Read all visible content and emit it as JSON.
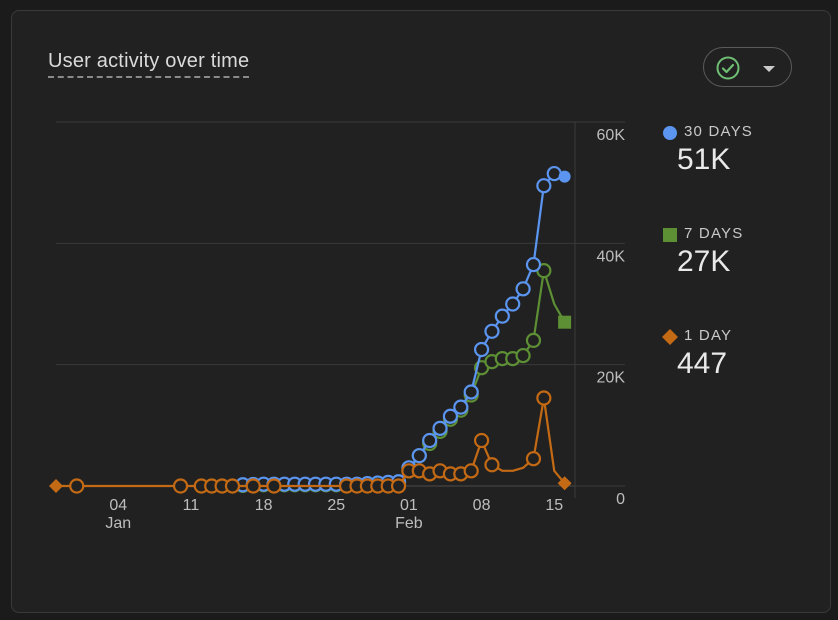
{
  "header": {
    "title": "User activity over time"
  },
  "controls": {
    "status_icon": "check-circle-icon",
    "dropdown_icon": "caret-down-icon"
  },
  "colors": {
    "days30": "#5b95f0",
    "days7": "#5d8f35",
    "day1": "#c46a14"
  },
  "legend": [
    {
      "key": "days30",
      "label": "30 DAYS",
      "value": "51K",
      "marker": "circle"
    },
    {
      "key": "days7",
      "label": "7 DAYS",
      "value": "27K",
      "marker": "square"
    },
    {
      "key": "day1",
      "label": "1 DAY",
      "value": "447",
      "marker": "diamond"
    }
  ],
  "chart_data": {
    "type": "line",
    "xlim": [
      "2023-12-29",
      "2024-02-17"
    ],
    "ylim": [
      0,
      60000
    ],
    "yticks": [
      0,
      20000,
      40000,
      60000
    ],
    "ytick_labels": [
      "0",
      "20K",
      "40K",
      "60K"
    ],
    "xticks": [
      {
        "x": "2024-01-04",
        "label": "04",
        "sublabel": "Jan"
      },
      {
        "x": "2024-01-11",
        "label": "11",
        "sublabel": ""
      },
      {
        "x": "2024-01-18",
        "label": "18",
        "sublabel": ""
      },
      {
        "x": "2024-01-25",
        "label": "25",
        "sublabel": ""
      },
      {
        "x": "2024-02-01",
        "label": "01",
        "sublabel": "Feb"
      },
      {
        "x": "2024-02-08",
        "label": "08",
        "sublabel": ""
      },
      {
        "x": "2024-02-15",
        "label": "15",
        "sublabel": ""
      }
    ],
    "grid": true,
    "legend_position": "right",
    "series": [
      {
        "name": "30 DAYS",
        "key": "days30",
        "marker": "circle",
        "points": [
          [
            "2024-01-16",
            200
          ],
          [
            "2024-01-17",
            250
          ],
          [
            "2024-01-18",
            300
          ],
          [
            "2024-01-19",
            300
          ],
          [
            "2024-01-20",
            300
          ],
          [
            "2024-01-21",
            300
          ],
          [
            "2024-01-22",
            300
          ],
          [
            "2024-01-23",
            300
          ],
          [
            "2024-01-24",
            300
          ],
          [
            "2024-01-25",
            300
          ],
          [
            "2024-01-26",
            300
          ],
          [
            "2024-01-27",
            300
          ],
          [
            "2024-01-28",
            400
          ],
          [
            "2024-01-29",
            500
          ],
          [
            "2024-01-30",
            600
          ],
          [
            "2024-01-31",
            700
          ],
          [
            "2024-02-01",
            3000
          ],
          [
            "2024-02-02",
            5000
          ],
          [
            "2024-02-03",
            7500
          ],
          [
            "2024-02-04",
            9500
          ],
          [
            "2024-02-05",
            11500
          ],
          [
            "2024-02-06",
            13000
          ],
          [
            "2024-02-07",
            15500
          ],
          [
            "2024-02-08",
            22500
          ],
          [
            "2024-02-09",
            25500
          ],
          [
            "2024-02-10",
            28000
          ],
          [
            "2024-02-11",
            30000
          ],
          [
            "2024-02-12",
            32500
          ],
          [
            "2024-02-13",
            36500
          ],
          [
            "2024-02-14",
            49500
          ],
          [
            "2024-02-15",
            51500
          ],
          [
            "2024-02-16",
            51000,
            "end"
          ]
        ]
      },
      {
        "name": "7 DAYS",
        "key": "days7",
        "marker": "square",
        "points": [
          [
            "2024-01-16",
            100
          ],
          [
            "2024-01-17",
            150
          ],
          [
            "2024-01-18",
            200
          ],
          [
            "2024-01-19",
            200
          ],
          [
            "2024-01-20",
            200
          ],
          [
            "2024-01-21",
            200
          ],
          [
            "2024-01-22",
            200
          ],
          [
            "2024-01-23",
            200
          ],
          [
            "2024-01-24",
            200
          ],
          [
            "2024-01-25",
            200
          ],
          [
            "2024-01-26",
            200
          ],
          [
            "2024-01-27",
            200
          ],
          [
            "2024-01-28",
            300
          ],
          [
            "2024-01-29",
            400
          ],
          [
            "2024-01-30",
            500
          ],
          [
            "2024-01-31",
            600
          ],
          [
            "2024-02-01",
            2500
          ],
          [
            "2024-02-02",
            5000
          ],
          [
            "2024-02-03",
            7000
          ],
          [
            "2024-02-04",
            9000
          ],
          [
            "2024-02-05",
            11000
          ],
          [
            "2024-02-06",
            12500
          ],
          [
            "2024-02-07",
            15000
          ],
          [
            "2024-02-08",
            19500
          ],
          [
            "2024-02-09",
            20500
          ],
          [
            "2024-02-10",
            21000
          ],
          [
            "2024-02-11",
            21000
          ],
          [
            "2024-02-12",
            21500
          ],
          [
            "2024-02-13",
            24000
          ],
          [
            "2024-02-14",
            35500
          ],
          [
            "2024-02-15",
            30000,
            "none"
          ],
          [
            "2024-02-16",
            27000,
            "end"
          ]
        ]
      },
      {
        "name": "1 DAY",
        "key": "day1",
        "marker": "diamond",
        "points": [
          [
            "2023-12-29",
            0,
            "start"
          ],
          [
            "2023-12-31",
            0
          ],
          [
            "2024-01-10",
            0
          ],
          [
            "2024-01-12",
            0
          ],
          [
            "2024-01-13",
            0
          ],
          [
            "2024-01-14",
            0
          ],
          [
            "2024-01-15",
            0
          ],
          [
            "2024-01-17",
            0
          ],
          [
            "2024-01-19",
            0
          ],
          [
            "2024-01-26",
            0
          ],
          [
            "2024-01-27",
            0
          ],
          [
            "2024-01-28",
            0
          ],
          [
            "2024-01-29",
            0
          ],
          [
            "2024-01-30",
            0
          ],
          [
            "2024-01-31",
            0
          ],
          [
            "2024-02-01",
            2500
          ],
          [
            "2024-02-02",
            2500
          ],
          [
            "2024-02-03",
            2000
          ],
          [
            "2024-02-04",
            2500
          ],
          [
            "2024-02-05",
            2000
          ],
          [
            "2024-02-06",
            2000
          ],
          [
            "2024-02-07",
            2500
          ],
          [
            "2024-02-08",
            7500
          ],
          [
            "2024-02-09",
            3500
          ],
          [
            "2024-02-10",
            2500,
            "none"
          ],
          [
            "2024-02-11",
            2500,
            "none"
          ],
          [
            "2024-02-12",
            3000,
            "none"
          ],
          [
            "2024-02-13",
            4500
          ],
          [
            "2024-02-14",
            14500
          ],
          [
            "2024-02-15",
            2500,
            "none"
          ],
          [
            "2024-02-16",
            447,
            "end"
          ]
        ]
      }
    ]
  }
}
